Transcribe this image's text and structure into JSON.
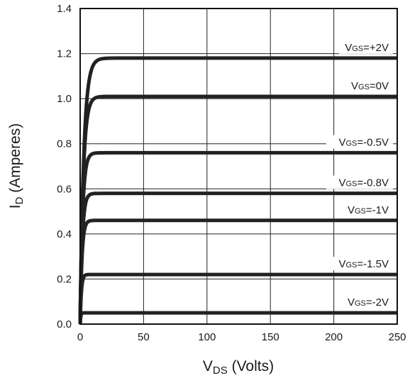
{
  "chart_data": {
    "type": "line",
    "title": "",
    "xlabel": {
      "main": "V",
      "sub": "DS",
      "rest": " (Volts)"
    },
    "ylabel": {
      "main": "I",
      "sub": "D",
      "rest": " (Amperes)"
    },
    "xlim": [
      0,
      250
    ],
    "ylim": [
      0,
      1.4
    ],
    "xticks": [
      "0",
      "50",
      "100",
      "150",
      "200",
      "250"
    ],
    "yticks": [
      "0.0",
      "0.2",
      "0.4",
      "0.6",
      "0.8",
      "1.0",
      "1.2",
      "1.4"
    ],
    "grid": true,
    "series": [
      {
        "name": "VGS=+2V",
        "label_main": "V",
        "label_sub": "GS",
        "label_rest": "=+2V",
        "plateau": 1.18,
        "knee_x": 12
      },
      {
        "name": "VGS=0V",
        "label_main": "V",
        "label_sub": "GS",
        "label_rest": "=0V",
        "plateau": 1.01,
        "knee_x": 10
      },
      {
        "name": "VGS=-0.5V",
        "label_main": "V",
        "label_sub": "GS",
        "label_rest": "=-0.5V",
        "plateau": 0.76,
        "knee_x": 8
      },
      {
        "name": "VGS=-0.8V",
        "label_main": "V",
        "label_sub": "GS",
        "label_rest": "=-0.8V",
        "plateau": 0.58,
        "knee_x": 7
      },
      {
        "name": "VGS=-1V",
        "label_main": "V",
        "label_sub": "GS",
        "label_rest": "=-1V",
        "plateau": 0.46,
        "knee_x": 6
      },
      {
        "name": "VGS=-1.5V",
        "label_main": "V",
        "label_sub": "GS",
        "label_rest": "=-1.5V",
        "plateau": 0.22,
        "knee_x": 4
      },
      {
        "name": "VGS=-2V",
        "label_main": "V",
        "label_sub": "GS",
        "label_rest": "=-2V",
        "plateau": 0.05,
        "knee_x": 2
      }
    ]
  }
}
